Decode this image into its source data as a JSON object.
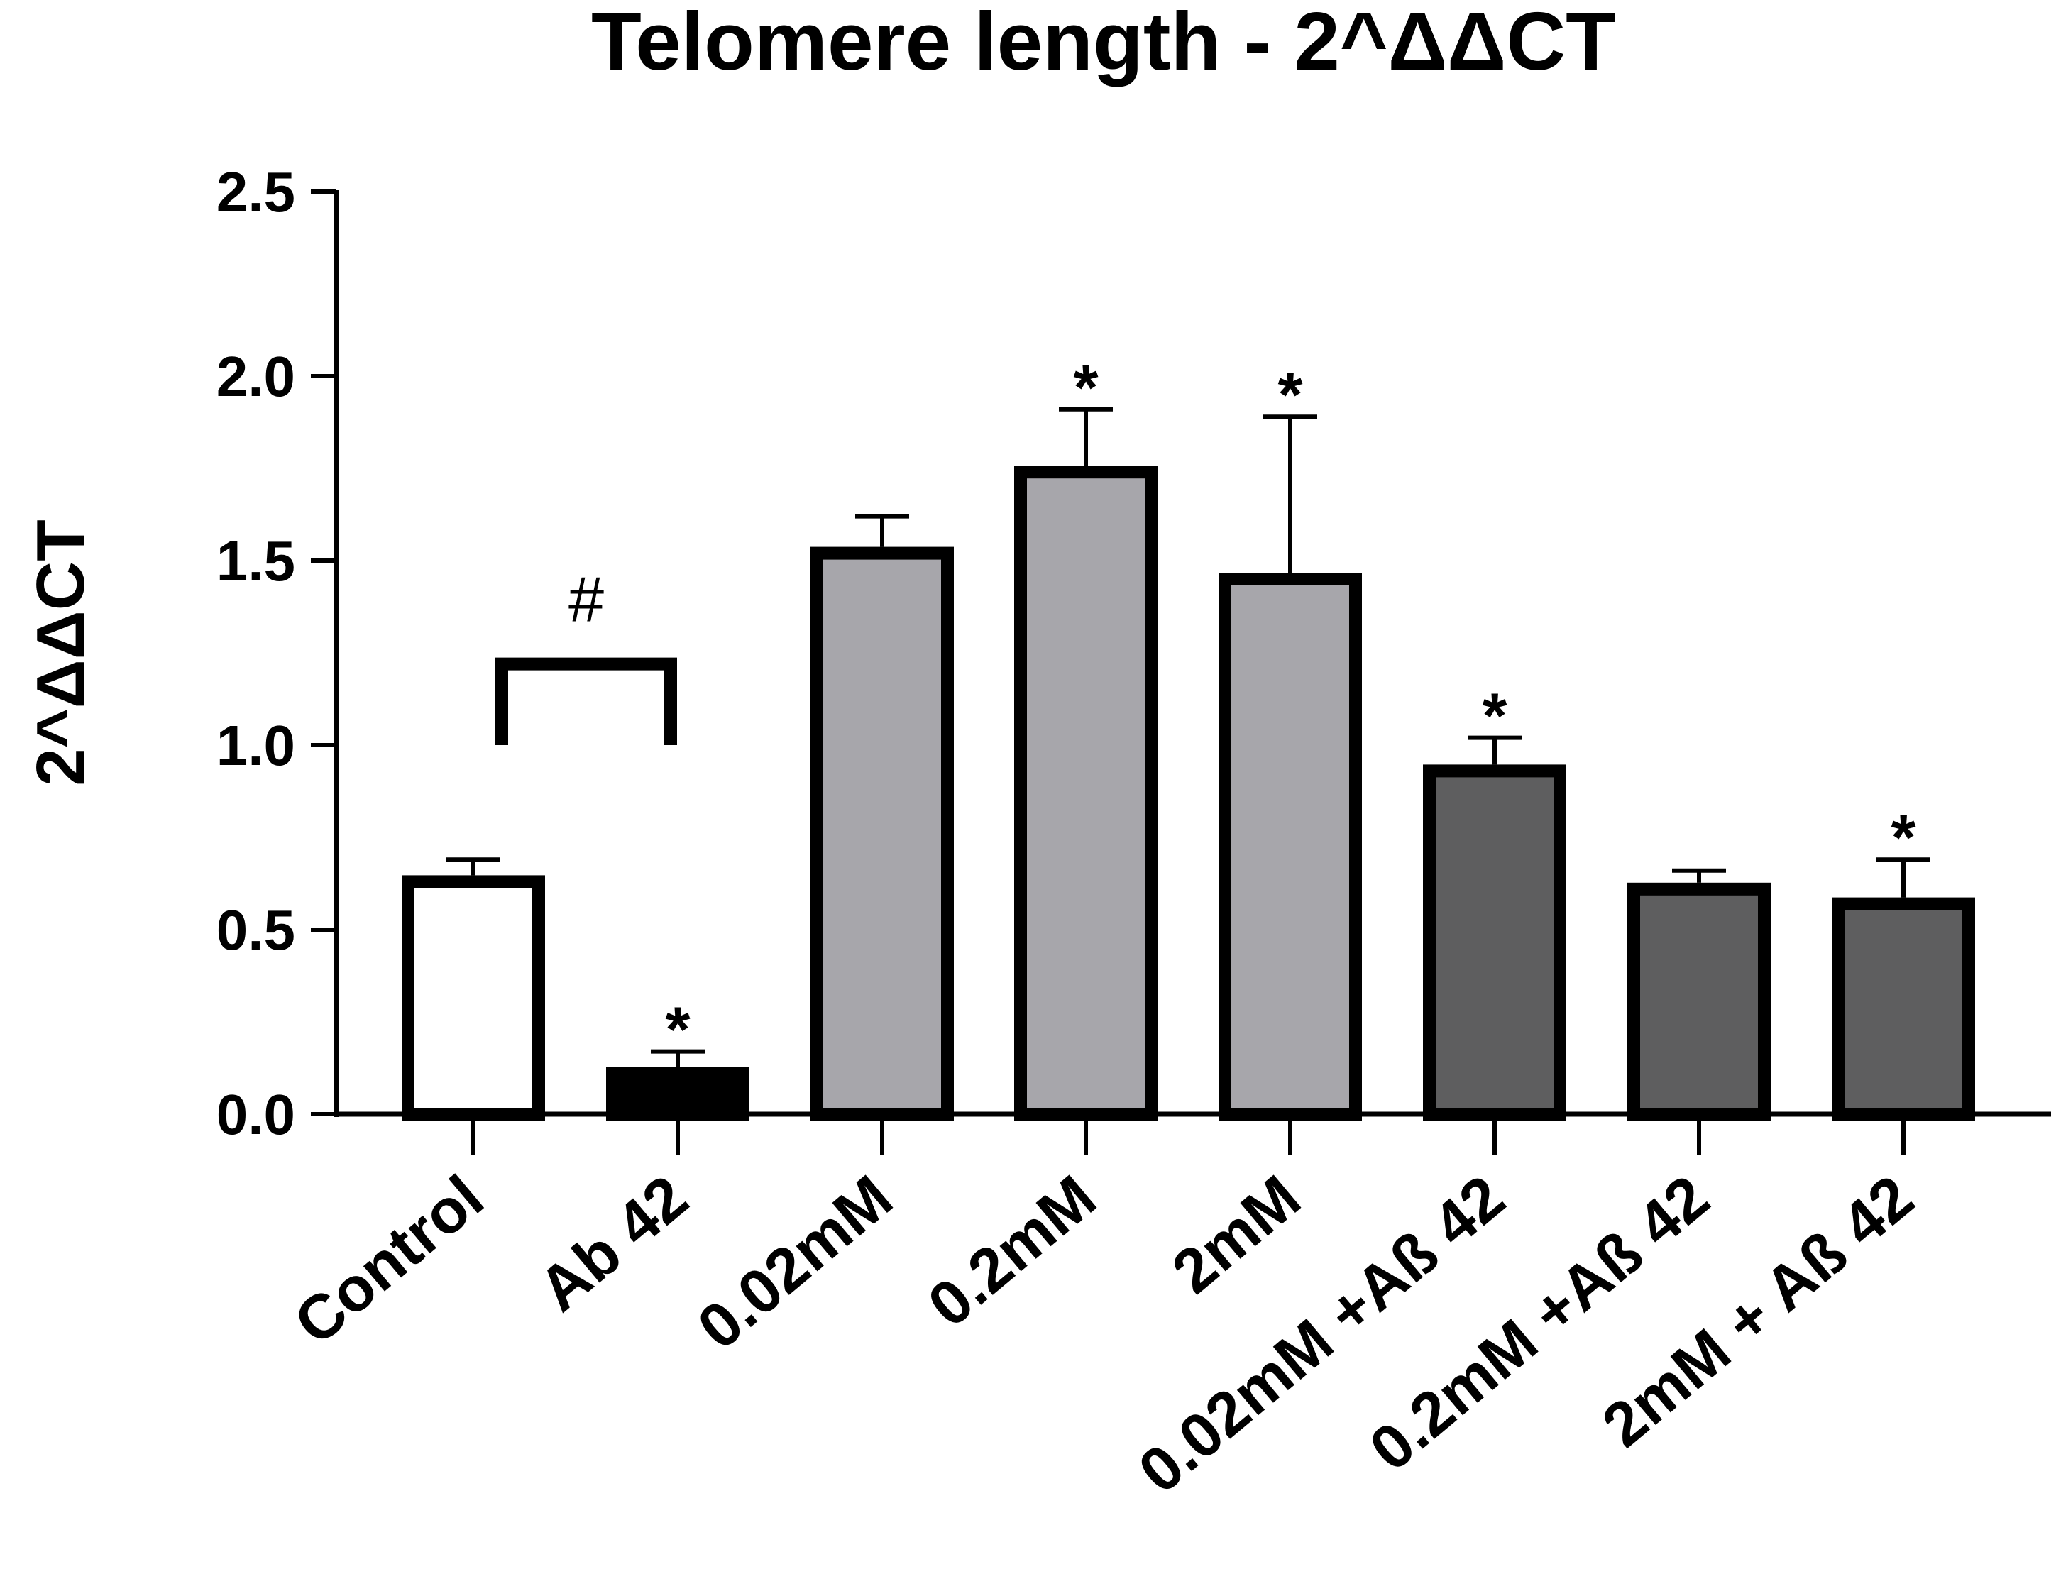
{
  "chart_data": {
    "type": "bar",
    "title": "Telomere length - 2^ΔΔCT",
    "xlabel": "",
    "ylabel": "2^ΔΔCT",
    "ylim": [
      0,
      2.5
    ],
    "yticks": [
      "0.0",
      "0.5",
      "1.0",
      "1.5",
      "2.0",
      "2.5"
    ],
    "ytick_values": [
      0,
      0.5,
      1.0,
      1.5,
      2.0,
      2.5
    ],
    "categories": [
      "Control",
      "Ab 42",
      "0.02mM",
      "0.2mM",
      "2mM",
      "0.02mM +Aß 42",
      "0.2mM +Aß 42",
      "2mM    + Aß 42"
    ],
    "values": [
      0.63,
      0.11,
      1.52,
      1.74,
      1.45,
      0.93,
      0.61,
      0.57
    ],
    "errors": [
      0.06,
      0.06,
      0.1,
      0.17,
      0.44,
      0.09,
      0.05,
      0.12
    ],
    "fills": [
      "#ffffff",
      "#000000",
      "#a7a6ab",
      "#a7a6ab",
      "#a7a6ab",
      "#5e5e5f",
      "#5e5e5f",
      "#5e5e5f"
    ],
    "significance": [
      "",
      "*",
      "",
      "*",
      "*",
      "*",
      "",
      "*"
    ],
    "bracket": {
      "label": "#",
      "from": 0,
      "to": 1,
      "y": 1.22
    },
    "grid": false,
    "legend": "none"
  }
}
